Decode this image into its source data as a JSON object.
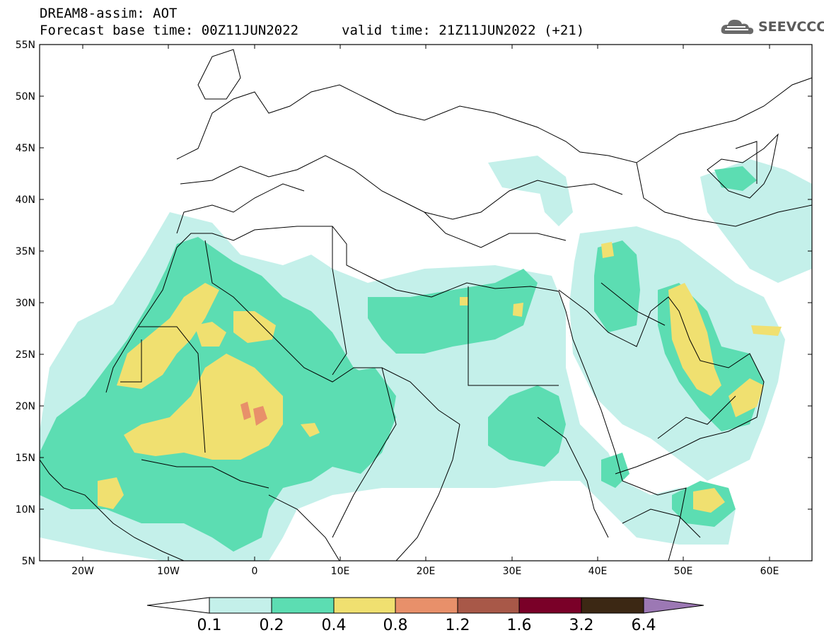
{
  "header": {
    "title_line1": "DREAM8-assim: AOT",
    "title_line2": "Forecast base time: 00Z11JUN2022",
    "valid_time": "valid time: 21Z11JUN2022 (+21)",
    "logo_text": "SEEVCCC",
    "logo_icon": "cloud-icon"
  },
  "map": {
    "lat_labels": [
      "55N",
      "50N",
      "45N",
      "40N",
      "35N",
      "30N",
      "25N",
      "20N",
      "15N",
      "10N",
      "5N"
    ],
    "lon_labels": [
      "20W",
      "10W",
      "0",
      "10E",
      "20E",
      "30E",
      "40E",
      "50E",
      "60E"
    ],
    "colors": {
      "c01": "#c4f0ea",
      "c02": "#5cddb2",
      "c04": "#f0e070",
      "c08": "#e8906a",
      "c12": "#a85848",
      "c16": "#7a0028",
      "c32": "#3c2814",
      "c64": "#9c78b4"
    }
  },
  "colorbar": {
    "labels": [
      "0.1",
      "0.2",
      "0.4",
      "0.8",
      "1.2",
      "1.6",
      "3.2",
      "6.4"
    ],
    "colors": [
      "#c4f0ea",
      "#5cddb2",
      "#f0e070",
      "#e8906a",
      "#a85848",
      "#7a0028",
      "#3c2814"
    ],
    "left_arrow_color": "#ffffff",
    "right_arrow_color": "#9c78b4"
  }
}
